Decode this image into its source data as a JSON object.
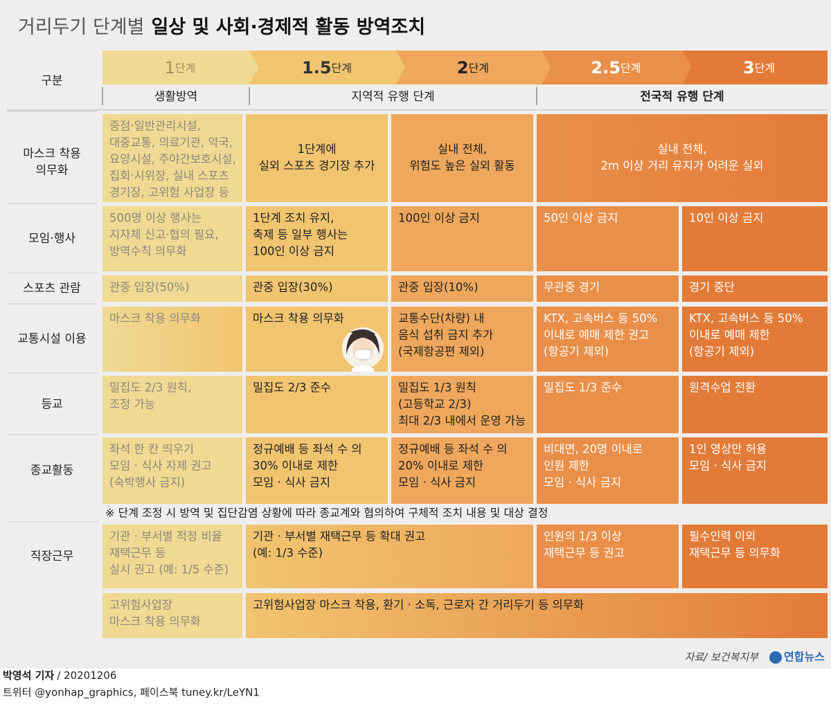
{
  "header": {
    "title_normal": "거리두기 단계별",
    "title_bold": "일상 및 사회·경제적 활동 방역조치"
  },
  "table": {
    "corner": "구분",
    "stages": [
      {
        "number": "1",
        "unit": "단계"
      },
      {
        "number": "1.5",
        "unit": "단계"
      },
      {
        "number": "2",
        "unit": "단계"
      },
      {
        "number": "2.5",
        "unit": "단계"
      },
      {
        "number": "3",
        "unit": "단계"
      }
    ],
    "phases": [
      "생활방역",
      "지역적 유행 단계",
      "전국적 유행 단계"
    ],
    "rows": [
      {
        "label": [
          "마스크 착용",
          "의무화"
        ],
        "cells": [
          [
            "중점·일반관리시설,",
            "대중교통, 의료기관, 약국,",
            "요양시설, 주야간보호시설,",
            "집회·시위장, 실내 스포츠",
            "경기장, 고위험 사업장 등"
          ],
          [
            "1단계에",
            "실외 스포츠 경기장 추가"
          ],
          [
            "실내 전체,",
            "위험도 높은 실외 활동"
          ],
          [
            "실내 전체,",
            "2m 이상 거리 유지가 어려운 실외"
          ]
        ]
      },
      {
        "label": [
          "모임·행사"
        ],
        "cells": [
          [
            "500명 이상 행사는",
            "지자체 신고·협의 필요,",
            "방역수칙 의무화"
          ],
          [
            "1단계 조치 유지,",
            "축제 등 일부 행사는",
            "100인 이상 금지"
          ],
          [
            "100인 이상 금지"
          ],
          [
            "50인 이상 금지"
          ],
          [
            "10인 이상 금지"
          ]
        ]
      },
      {
        "label": [
          "스포츠 관람"
        ],
        "cells": [
          [
            "관중 입장(50%)"
          ],
          [
            "관중 입장(30%)"
          ],
          [
            "관중 입장(10%)"
          ],
          [
            "무관중 경기"
          ],
          [
            "경기 중단"
          ]
        ]
      },
      {
        "label": [
          "교통시설 이용"
        ],
        "cells": [
          [
            "마스크 착용 의무화"
          ],
          [
            "마스크 착용 의무화"
          ],
          [
            "교통수단(차량) 내",
            "음식 섭취 금지 추가",
            "(국제항공편 제외)"
          ],
          [
            "KTX, 고속버스 등 50%",
            "이내로 예매 제한 권고",
            "(항공기 제외)"
          ],
          [
            "KTX, 고속버스 등 50%",
            "이내로 예매 제한",
            "(항공기 제외)"
          ]
        ]
      },
      {
        "label": [
          "등교"
        ],
        "cells": [
          [
            "밀집도 2/3 원칙,",
            "조정 가능"
          ],
          [
            "밀집도 2/3 준수"
          ],
          [
            "밀집도 1/3 원칙",
            "(고등학교 2/3)",
            "최대 2/3 내에서 운영 가능"
          ],
          [
            "밀집도 1/3 준수"
          ],
          [
            "원격수업 전환"
          ]
        ]
      },
      {
        "label": [
          "종교활동"
        ],
        "cells": [
          [
            "좌석 한 칸 띄우기",
            "모임 · 식사 자제 권고",
            "(숙박행사 금지)"
          ],
          [
            "정규예배 등 좌석 수 의",
            "30% 이내로 제한",
            "모임 · 식사 금지"
          ],
          [
            "정규예배 등 좌석 수 의",
            "20% 이내로 제한",
            "모임 · 식사 금지"
          ],
          [
            "비대면, 20명 이내로",
            "인원 제한",
            "모임 · 식사 금지"
          ],
          [
            "1인 영상만 허용",
            "모임 · 식사 금지"
          ]
        ]
      },
      {
        "label": [
          "직장근무"
        ],
        "cells": [
          [
            "기관 · 부서별 적정 비율",
            "재택근무 등",
            "실시 권고 (예: 1/5 수준)"
          ],
          [
            "기관 · 부서별 재택근무 등 확대 권고",
            "(예: 1/3 수준)"
          ],
          [
            "인원의 1/3 이상",
            "재택근무 등 권고"
          ],
          [
            "필수인력 이외",
            "재택근무 등 의무화"
          ]
        ]
      },
      {
        "cells": [
          [
            "고위험사업장",
            "마스크 착용 의무화"
          ],
          [
            "고위험사업장 마스크 착용, 환기 · 소독, 근로자 간 거리두기 등 의무화"
          ]
        ]
      }
    ],
    "note": "※ 단계 조정 시 방역 및 집단감염 상황에 따라 종교계와 협의하여 구체적 조치 내용 및 대상 결정"
  },
  "footer": {
    "source": "자료/ 보건복지부",
    "logo": "연합뉴스",
    "reporter": "박영석 기자",
    "date": "/ 20201206",
    "sns": "트위터 @yonhap_graphics, 페이스북 tuney.kr/LeYN1"
  }
}
